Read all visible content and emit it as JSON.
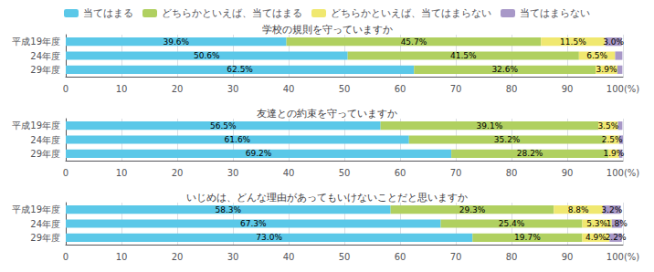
{
  "chart_data": [
    {
      "type": "bar",
      "orientation": "horizontal",
      "stacked": true,
      "data_labels": true,
      "grid": true,
      "legend": "top",
      "title": "学校の規則を守っていますか",
      "categories": [
        "平成19年度",
        "24年度",
        "29年度"
      ],
      "series": [
        {
          "name": "当てはまる",
          "color": "#5bc8e8",
          "values": [
            39.6,
            50.6,
            62.5
          ],
          "value_labels": [
            "39.6%",
            "50.6%",
            "62.5%"
          ]
        },
        {
          "name": "どちらかといえば、当てはまる",
          "color": "#b0d060",
          "values": [
            45.7,
            41.5,
            32.6
          ],
          "value_labels": [
            "45.7%",
            "41.5%",
            "32.6%"
          ]
        },
        {
          "name": "どちらかといえば、当てはまらない",
          "color": "#f0e870",
          "values": [
            11.5,
            6.5,
            3.9
          ],
          "value_labels": [
            "11.5%",
            "6.5%",
            "3.9%"
          ]
        },
        {
          "name": "当てはまらない",
          "color": "#a898c8",
          "values": [
            3.0,
            1.3,
            0.9
          ],
          "value_labels": [
            "3.0%",
            null,
            null
          ]
        }
      ],
      "xlim": [
        0,
        100
      ],
      "xticks": [
        0,
        10,
        20,
        30,
        40,
        50,
        60,
        70,
        80,
        90,
        {
          "value": 100,
          "label": "100(%)"
        }
      ]
    },
    {
      "type": "bar",
      "orientation": "horizontal",
      "stacked": true,
      "data_labels": true,
      "grid": true,
      "legend": "top",
      "title": "友達との約束を守っていますか",
      "categories": [
        "平成19年度",
        "24年度",
        "29年度"
      ],
      "series": [
        {
          "name": "当てはまる",
          "color": "#5bc8e8",
          "values": [
            56.5,
            61.6,
            69.2
          ],
          "value_labels": [
            "56.5%",
            "61.6%",
            "69.2%"
          ]
        },
        {
          "name": "どちらかといえば、当てはまる",
          "color": "#b0d060",
          "values": [
            39.1,
            35.2,
            28.2
          ],
          "value_labels": [
            "39.1%",
            "35.2%",
            "28.2%"
          ]
        },
        {
          "name": "どちらかといえば、当てはまらない",
          "color": "#f0e870",
          "values": [
            3.5,
            2.5,
            1.9
          ],
          "value_labels": [
            "3.5%",
            "2.5%",
            "1.9%"
          ]
        },
        {
          "name": "当てはまらない",
          "color": "#a898c8",
          "values": [
            0.8,
            0.7,
            0.6
          ],
          "value_labels": [
            null,
            null,
            null
          ]
        }
      ],
      "xlim": [
        0,
        100
      ],
      "xticks": [
        0,
        10,
        20,
        30,
        40,
        50,
        60,
        70,
        80,
        90,
        {
          "value": 100,
          "label": "100(%)"
        }
      ]
    },
    {
      "type": "bar",
      "orientation": "horizontal",
      "stacked": true,
      "data_labels": true,
      "grid": true,
      "legend": "top",
      "title": "いじめは、どんな理由があってもいけないことだと思いますか",
      "categories": [
        "平成19年度",
        "24年度",
        "29年度"
      ],
      "series": [
        {
          "name": "当てはまる",
          "color": "#5bc8e8",
          "values": [
            58.3,
            67.3,
            73.0
          ],
          "value_labels": [
            "58.3%",
            "67.3%",
            "73.0%"
          ]
        },
        {
          "name": "どちらかといえば、当てはまる",
          "color": "#b0d060",
          "values": [
            29.3,
            25.4,
            19.7
          ],
          "value_labels": [
            "29.3%",
            "25.4%",
            "19.7%"
          ]
        },
        {
          "name": "どちらかといえば、当てはまらない",
          "color": "#f0e870",
          "values": [
            8.8,
            5.3,
            4.9
          ],
          "value_labels": [
            "8.8%",
            "5.3%",
            "4.9%"
          ]
        },
        {
          "name": "当てはまらない",
          "color": "#a898c8",
          "values": [
            3.2,
            1.8,
            2.2
          ],
          "value_labels": [
            "3.2%",
            "1.8%",
            "2.2%"
          ]
        }
      ],
      "xlim": [
        0,
        100
      ],
      "xticks": [
        0,
        10,
        20,
        30,
        40,
        50,
        60,
        70,
        80,
        90,
        {
          "value": 100,
          "label": "100(%)"
        }
      ]
    }
  ]
}
